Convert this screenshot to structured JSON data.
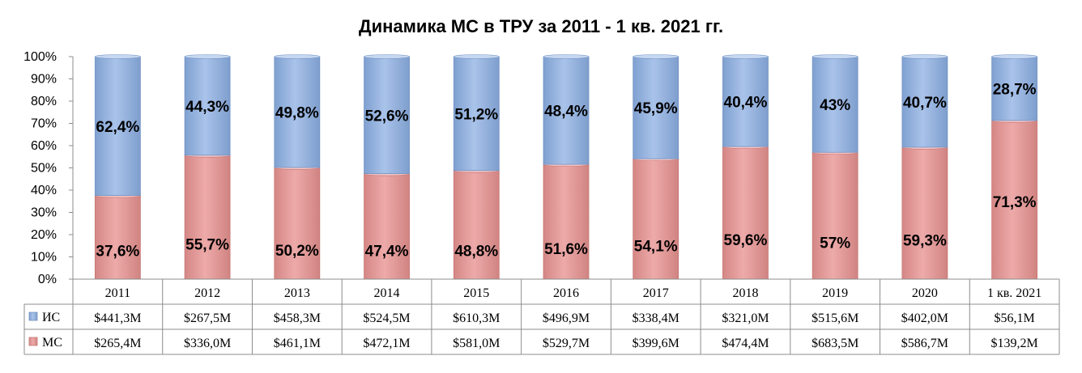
{
  "chart_data": {
    "type": "bar",
    "stacked": true,
    "percent": true,
    "title": "Динамика МС в ТРУ за 2011 - 1 кв. 2021 гг.",
    "categories": [
      "2011",
      "2012",
      "2013",
      "2014",
      "2015",
      "2016",
      "2017",
      "2018",
      "2019",
      "2020",
      "1 кв. 2021"
    ],
    "ylim": [
      0,
      100
    ],
    "yticks": [
      "0%",
      "10%",
      "20%",
      "30%",
      "40%",
      "50%",
      "60%",
      "70%",
      "80%",
      "90%",
      "100%"
    ],
    "grid": false,
    "legend": "data-table-left",
    "series": [
      {
        "name": "МС",
        "color": "#E6A09F",
        "values": [
          37.6,
          55.7,
          50.2,
          47.4,
          48.8,
          51.6,
          54.1,
          59.6,
          57,
          59.3,
          71.3
        ],
        "labels": [
          "37,6%",
          "55,7%",
          "50,2%",
          "47,4%",
          "48,8%",
          "51,6%",
          "54,1%",
          "59,6%",
          "57%",
          "59,3%",
          "71,3%"
        ],
        "table": [
          "$265,4M",
          "$336,0M",
          "$461,1M",
          "$472,1M",
          "$581,0M",
          "$529,7M",
          "$399,6M",
          "$474,4M",
          "$683,5M",
          "$586,7M",
          "$139,2M"
        ]
      },
      {
        "name": "ИС",
        "color": "#9DB9E2",
        "values": [
          62.4,
          44.3,
          49.8,
          52.6,
          51.2,
          48.4,
          45.9,
          40.4,
          43,
          40.7,
          28.7
        ],
        "labels": [
          "62,4%",
          "44,3%",
          "49,8%",
          "52,6%",
          "51,2%",
          "48,4%",
          "45,9%",
          "40,4%",
          "43%",
          "40,7%",
          "28,7%"
        ],
        "table": [
          "$441,3M",
          "$267,5M",
          "$458,3M",
          "$524,5M",
          "$610,3M",
          "$496,9M",
          "$338,4M",
          "$321,0M",
          "$515,6M",
          "$402,0M",
          "$56,1M"
        ]
      }
    ]
  }
}
